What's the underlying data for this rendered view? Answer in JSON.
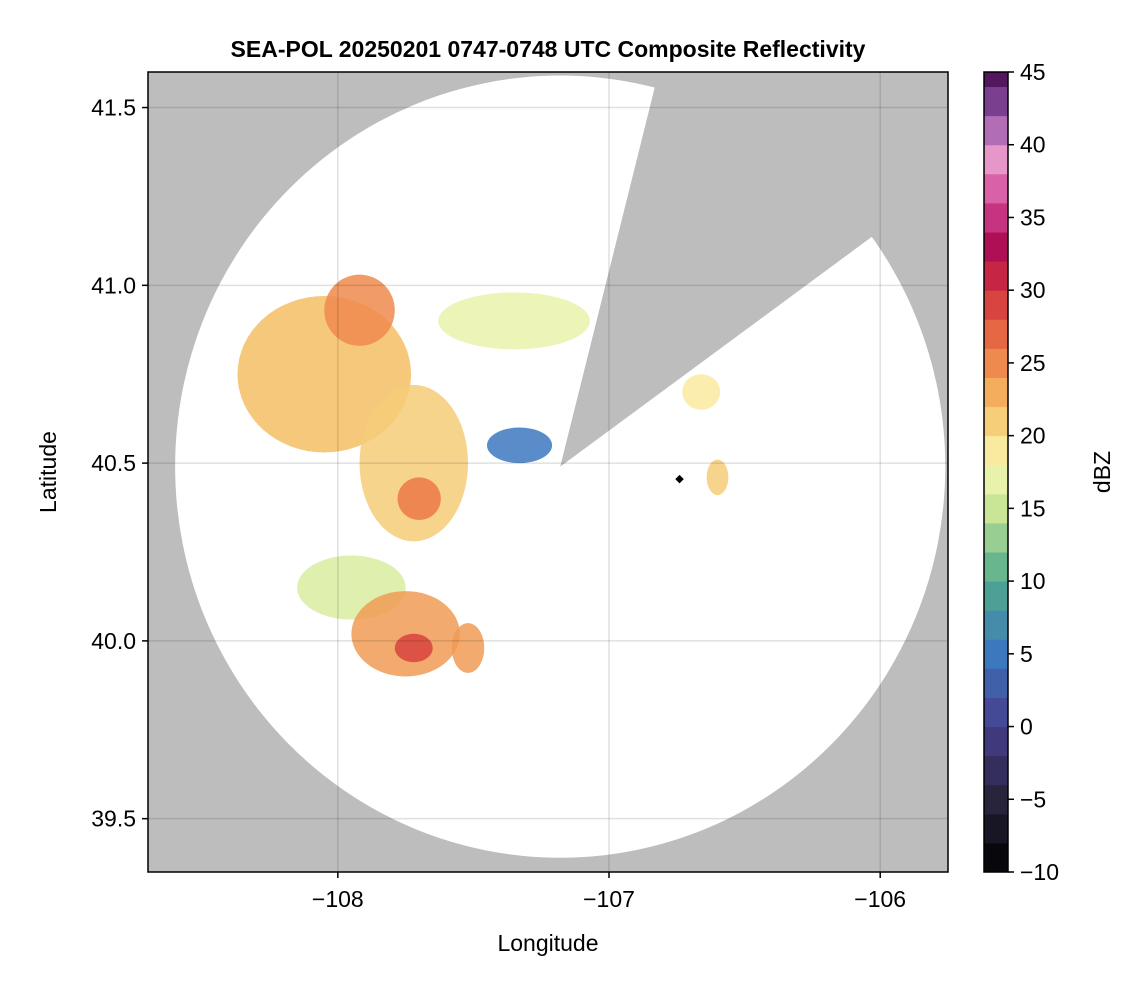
{
  "chart_data": {
    "type": "heatmap",
    "title": "SEA-POL 20250201 0747-0748 UTC Composite Reflectivity",
    "xlabel": "Longitude",
    "ylabel": "Latitude",
    "xlim": [
      -108.7,
      -105.75
    ],
    "ylim": [
      39.35,
      41.6
    ],
    "xticks": [
      -108,
      -107,
      -106
    ],
    "xtick_labels": [
      "−108",
      "−107",
      "−106"
    ],
    "yticks": [
      39.5,
      40.0,
      40.5,
      41.0,
      41.5
    ],
    "ytick_labels": [
      "39.5",
      "40.0",
      "40.5",
      "41.0",
      "41.5"
    ],
    "grid": true,
    "background_color": "#bdbdbd",
    "radar": {
      "center": [
        -107.18,
        40.49
      ],
      "max_range_lon": 1.42,
      "max_range_lat": 1.1,
      "blocked_sector_outline": [
        [
          -107.18,
          40.49
        ],
        [
          -106.84,
          41.53
        ],
        [
          -106.06,
          41.12
        ]
      ]
    },
    "site_marker": [
      -106.74,
      40.455
    ],
    "colorbar": {
      "label": "dBZ",
      "min": -10,
      "max": 45,
      "step": 2,
      "ticks": [
        -10,
        -5,
        0,
        5,
        10,
        15,
        20,
        25,
        30,
        35,
        40,
        45
      ],
      "tick_labels": [
        "−10",
        "−5",
        "0",
        "5",
        "10",
        "15",
        "20",
        "25",
        "30",
        "35",
        "40",
        "45"
      ],
      "colormap": "Spectral_r"
    },
    "echo_regions": [
      {
        "name": "northwest",
        "lon": -108.05,
        "lat": 40.75,
        "rlon": 0.32,
        "rlat": 0.22,
        "dbz": 22
      },
      {
        "name": "northwest-core",
        "lon": -107.92,
        "lat": 40.93,
        "rlon": 0.13,
        "rlat": 0.1,
        "dbz": 25
      },
      {
        "name": "north-band",
        "lon": -107.35,
        "lat": 40.9,
        "rlon": 0.28,
        "rlat": 0.08,
        "dbz": 17
      },
      {
        "name": "central",
        "lon": -107.72,
        "lat": 40.5,
        "rlon": 0.2,
        "rlat": 0.22,
        "dbz": 21
      },
      {
        "name": "central-core",
        "lon": -107.7,
        "lat": 40.4,
        "rlon": 0.08,
        "rlat": 0.06,
        "dbz": 26
      },
      {
        "name": "southwest-band",
        "lon": -107.95,
        "lat": 40.15,
        "rlon": 0.2,
        "rlat": 0.09,
        "dbz": 16
      },
      {
        "name": "southwest",
        "lon": -107.75,
        "lat": 40.02,
        "rlon": 0.2,
        "rlat": 0.12,
        "dbz": 24
      },
      {
        "name": "southwest-core",
        "lon": -107.72,
        "lat": 39.98,
        "rlon": 0.07,
        "rlat": 0.04,
        "dbz": 29
      },
      {
        "name": "south-cell",
        "lon": -107.52,
        "lat": 39.98,
        "rlon": 0.06,
        "rlat": 0.07,
        "dbz": 24
      },
      {
        "name": "east-cell",
        "lon": -106.6,
        "lat": 40.46,
        "rlon": 0.04,
        "rlat": 0.05,
        "dbz": 21
      },
      {
        "name": "northeast-cell",
        "lon": -106.66,
        "lat": 40.7,
        "rlon": 0.07,
        "rlat": 0.05,
        "dbz": 19
      },
      {
        "name": "near-radar-weak",
        "lon": -107.33,
        "lat": 40.55,
        "rlon": 0.12,
        "rlat": 0.05,
        "dbz": 5
      }
    ]
  }
}
